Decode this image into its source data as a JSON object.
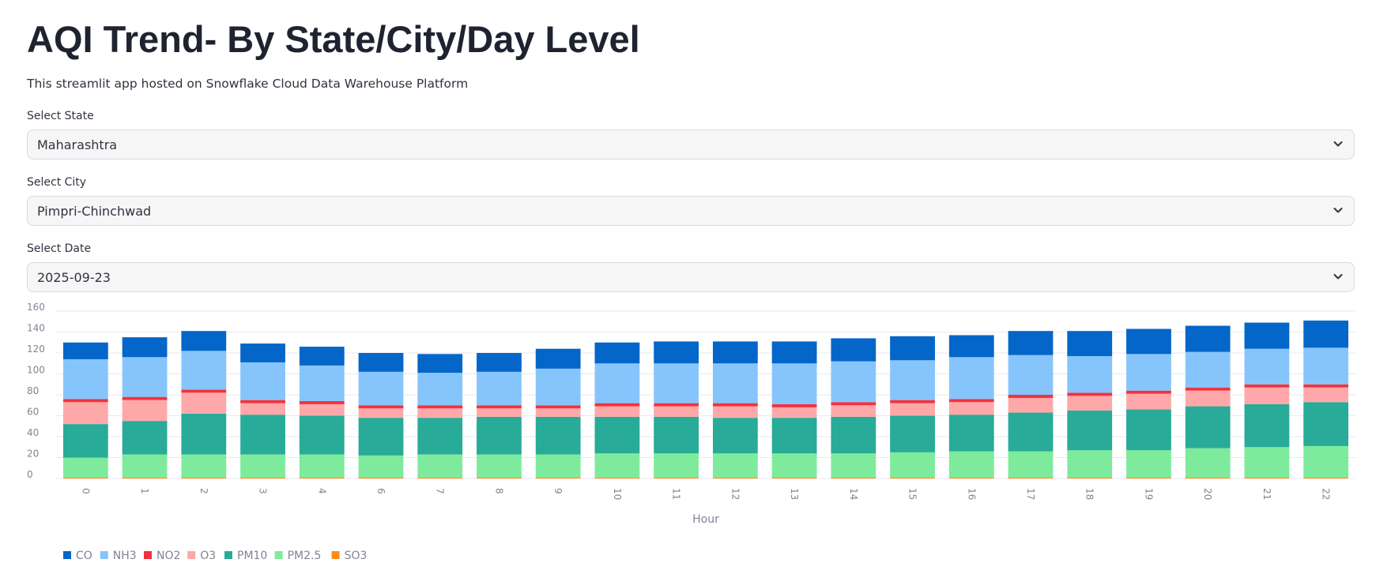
{
  "header": {
    "title": "AQI Trend- By State/City/Day Level",
    "subtitle": "This streamlit app hosted on Snowflake Cloud Data Warehouse Platform"
  },
  "filters": {
    "state": {
      "label": "Select State",
      "value": "Maharashtra"
    },
    "city": {
      "label": "Select City",
      "value": "Pimpri-Chinchwad"
    },
    "date": {
      "label": "Select Date",
      "value": "2025-09-23"
    }
  },
  "chart_data": {
    "type": "bar",
    "stacked": true,
    "xlabel": "Hour",
    "ylabel": "",
    "ylim": [
      0,
      160
    ],
    "yticks": [
      0,
      20,
      40,
      60,
      80,
      100,
      120,
      140,
      160
    ],
    "grid": true,
    "legend_position": "bottom-left",
    "categories": [
      "0",
      "1",
      "2",
      "3",
      "4",
      "6",
      "7",
      "8",
      "9",
      "10",
      "11",
      "12",
      "13",
      "14",
      "15",
      "16",
      "17",
      "18",
      "19",
      "20",
      "21",
      "22"
    ],
    "series": [
      {
        "name": "SO3",
        "color": "#ff8c1a",
        "values": [
          1,
          1,
          1,
          1,
          1,
          1,
          1,
          1,
          1,
          1,
          1,
          1,
          1,
          1,
          1,
          1,
          1,
          1,
          1,
          1,
          1,
          1
        ]
      },
      {
        "name": "PM2.5",
        "color": "#7eeb9c",
        "values": [
          19,
          22,
          22,
          22,
          22,
          21,
          22,
          22,
          22,
          23,
          23,
          23,
          23,
          23,
          24,
          25,
          25,
          26,
          26,
          28,
          29,
          30
        ]
      },
      {
        "name": "PM10",
        "color": "#28ab98",
        "values": [
          32,
          32,
          39,
          38,
          37,
          36,
          35,
          36,
          36,
          35,
          35,
          34,
          34,
          35,
          35,
          35,
          37,
          38,
          39,
          40,
          41,
          42
        ]
      },
      {
        "name": "O3",
        "color": "#ffa8a9",
        "values": [
          21,
          20,
          20,
          11,
          11,
          9,
          9,
          8,
          8,
          10,
          10,
          11,
          10,
          11,
          12,
          12,
          14,
          14,
          15,
          15,
          16,
          14
        ]
      },
      {
        "name": "NO2",
        "color": "#f2323d",
        "values": [
          3,
          3,
          3,
          3,
          3,
          3,
          3,
          3,
          3,
          3,
          3,
          3,
          3,
          3,
          3,
          3,
          3,
          3,
          3,
          3,
          3,
          3
        ]
      },
      {
        "name": "NH3",
        "color": "#86c5fc",
        "values": [
          38,
          38,
          37,
          36,
          34,
          32,
          31,
          32,
          35,
          38,
          38,
          38,
          39,
          39,
          38,
          40,
          38,
          35,
          35,
          34,
          34,
          35
        ]
      },
      {
        "name": "CO",
        "color": "#0466c8",
        "values": [
          16,
          19,
          19,
          18,
          18,
          18,
          18,
          18,
          19,
          20,
          21,
          21,
          21,
          22,
          23,
          21,
          23,
          24,
          24,
          25,
          25,
          26
        ]
      }
    ],
    "legend_order": [
      "CO",
      "NH3",
      "NO2",
      "O3",
      "PM10",
      "PM2.5",
      "SO3"
    ]
  }
}
